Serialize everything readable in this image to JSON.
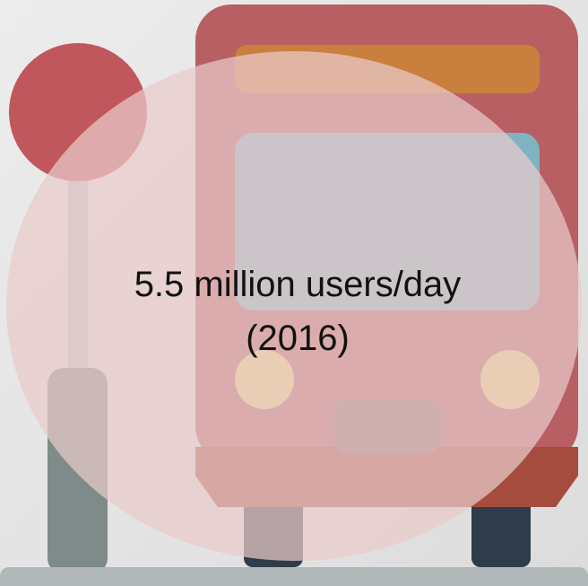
{
  "caption": {
    "line1": "5.5 million users/day",
    "line2": "(2016)"
  }
}
